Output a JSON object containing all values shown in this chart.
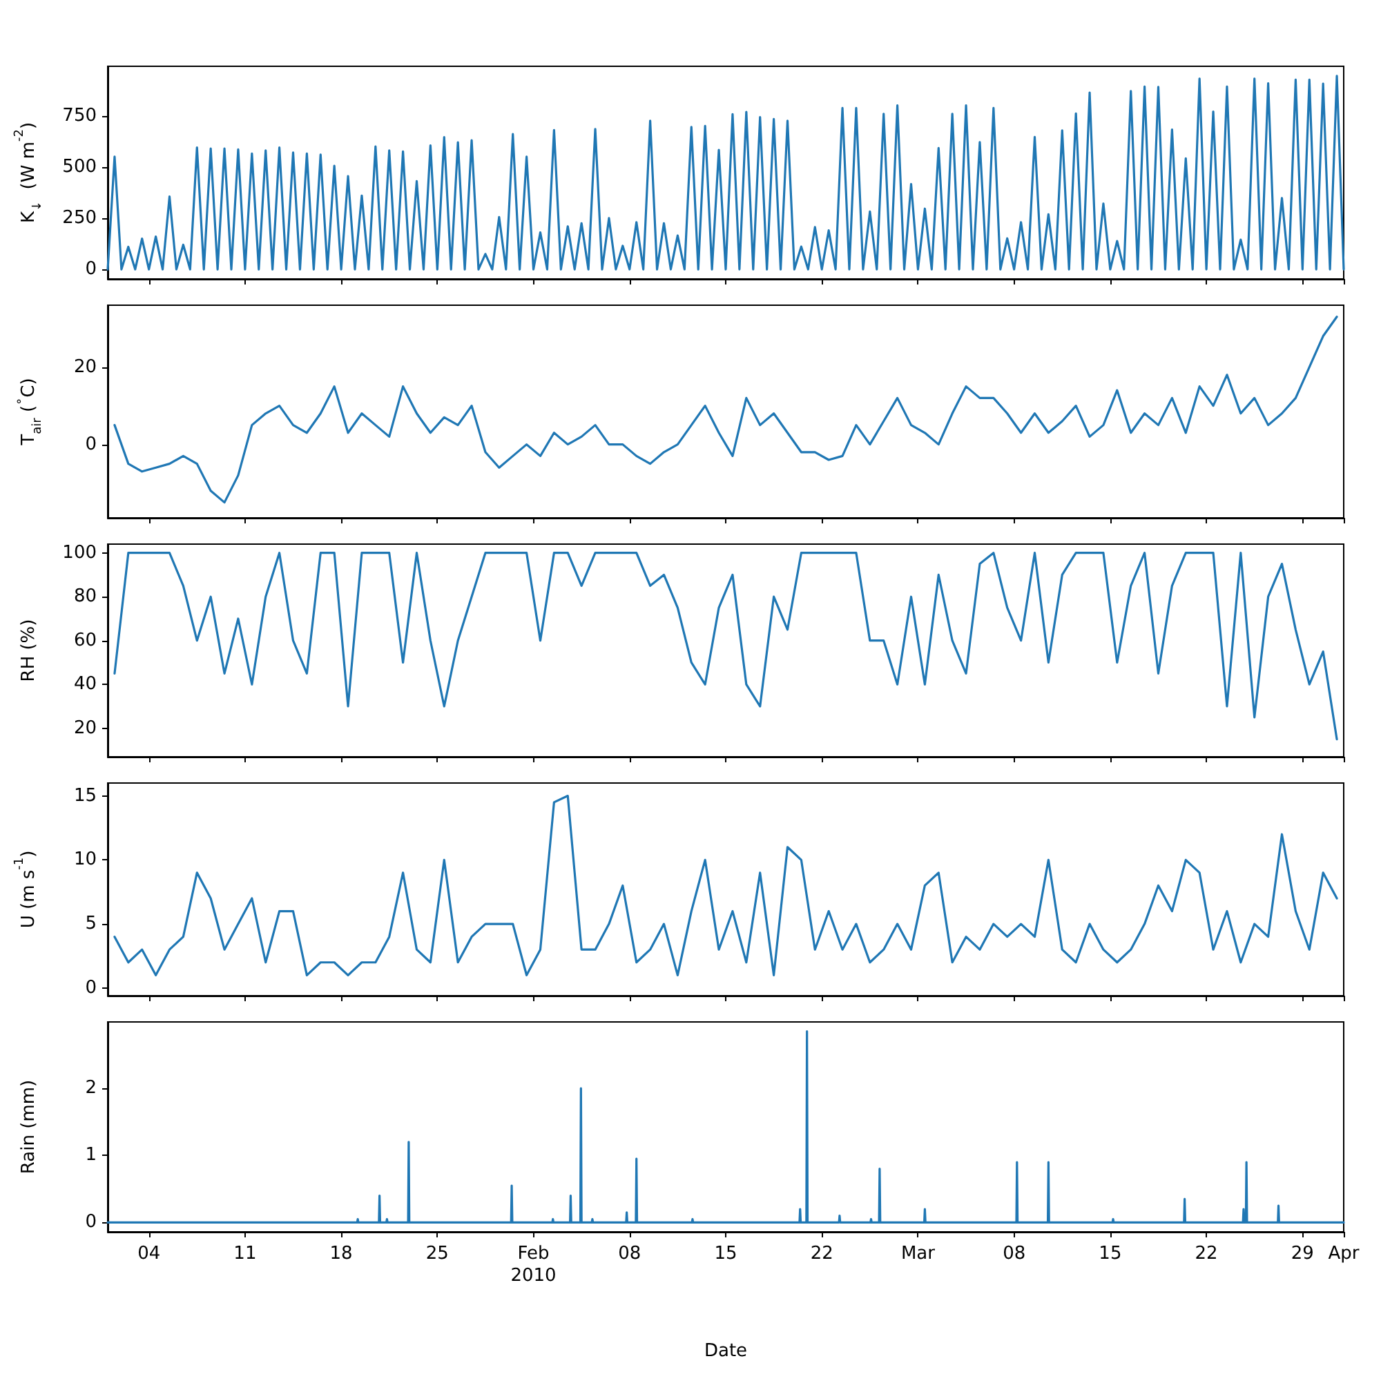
{
  "chart_data": [
    {
      "type": "line",
      "ylabel": "K$_{↓}$  (W m$^{-2}$)",
      "color": "#1f77b4",
      "marker": "none",
      "tick_labels": "y",
      "xlim": [
        "2010-01-01",
        "2010-04-01"
      ],
      "xticks": [
        {
          "value": "2010-01-04",
          "label": null
        },
        {
          "value": "2010-01-11",
          "label": null
        },
        {
          "value": "2010-01-18",
          "label": null
        },
        {
          "value": "2010-01-25",
          "label": null
        },
        {
          "value": "2010-02-01",
          "label": null
        },
        {
          "value": "2010-02-08",
          "label": null
        },
        {
          "value": "2010-02-15",
          "label": null
        },
        {
          "value": "2010-02-22",
          "label": null
        },
        {
          "value": "2010-03-01",
          "label": null
        },
        {
          "value": "2010-03-08",
          "label": null
        },
        {
          "value": "2010-03-15",
          "label": null
        },
        {
          "value": "2010-03-22",
          "label": null
        },
        {
          "value": "2010-03-29",
          "label": null
        },
        {
          "value": "2010-04-01",
          "label": null
        }
      ],
      "ylim": [
        -47,
        991
      ],
      "yticks": [
        0,
        250,
        500,
        750
      ],
      "x": [
        "2010-01-01",
        "2010-01-01T12:00",
        "2010-01-02",
        "2010-01-02T12:00",
        "2010-01-03",
        "2010-01-03T12:00",
        "2010-01-04",
        "2010-01-04T12:00",
        "2010-01-05",
        "2010-01-05T12:00",
        "2010-01-06",
        "2010-01-06T12:00",
        "2010-01-07",
        "2010-01-07T12:00",
        "2010-01-08",
        "2010-01-08T12:00",
        "2010-01-09",
        "2010-01-09T12:00",
        "2010-01-10",
        "2010-01-10T12:00",
        "2010-01-11",
        "2010-01-11T12:00",
        "2010-01-12",
        "2010-01-12T12:00",
        "2010-01-13",
        "2010-01-13T12:00",
        "2010-01-14",
        "2010-01-14T12:00",
        "2010-01-15",
        "2010-01-15T12:00",
        "2010-01-16",
        "2010-01-16T12:00",
        "2010-01-17",
        "2010-01-17T12:00",
        "2010-01-18",
        "2010-01-18T12:00",
        "2010-01-19",
        "2010-01-19T12:00",
        "2010-01-20",
        "2010-01-20T12:00",
        "2010-01-21",
        "2010-01-21T12:00",
        "2010-01-22",
        "2010-01-22T12:00",
        "2010-01-23",
        "2010-01-23T12:00",
        "2010-01-24",
        "2010-01-24T12:00",
        "2010-01-25",
        "2010-01-25T12:00",
        "2010-01-26",
        "2010-01-26T12:00",
        "2010-01-27",
        "2010-01-27T12:00",
        "2010-01-28",
        "2010-01-28T12:00",
        "2010-01-29",
        "2010-01-29T12:00",
        "2010-01-30",
        "2010-01-30T12:00",
        "2010-01-31",
        "2010-01-31T12:00",
        "2010-02-01",
        "2010-02-01T12:00",
        "2010-02-02",
        "2010-02-02T12:00",
        "2010-02-03",
        "2010-02-03T12:00",
        "2010-02-04",
        "2010-02-04T12:00",
        "2010-02-05",
        "2010-02-05T12:00",
        "2010-02-06",
        "2010-02-06T12:00",
        "2010-02-07",
        "2010-02-07T12:00",
        "2010-02-08",
        "2010-02-08T12:00",
        "2010-02-09",
        "2010-02-09T12:00",
        "2010-02-10",
        "2010-02-10T12:00",
        "2010-02-11",
        "2010-02-11T12:00",
        "2010-02-12",
        "2010-02-12T12:00",
        "2010-02-13",
        "2010-02-13T12:00",
        "2010-02-14",
        "2010-02-14T12:00",
        "2010-02-15",
        "2010-02-15T12:00",
        "2010-02-16",
        "2010-02-16T12:00",
        "2010-02-17",
        "2010-02-17T12:00",
        "2010-02-18",
        "2010-02-18T12:00",
        "2010-02-19",
        "2010-02-19T12:00",
        "2010-02-20",
        "2010-02-20T12:00",
        "2010-02-21",
        "2010-02-21T12:00",
        "2010-02-22",
        "2010-02-22T12:00",
        "2010-02-23",
        "2010-02-23T12:00",
        "2010-02-24",
        "2010-02-24T12:00",
        "2010-02-25",
        "2010-02-25T12:00",
        "2010-02-26",
        "2010-02-26T12:00",
        "2010-02-27",
        "2010-02-27T12:00",
        "2010-02-28",
        "2010-02-28T12:00",
        "2010-03-01",
        "2010-03-01T12:00",
        "2010-03-02",
        "2010-03-02T12:00",
        "2010-03-03",
        "2010-03-03T12:00",
        "2010-03-04",
        "2010-03-04T12:00",
        "2010-03-05",
        "2010-03-05T12:00",
        "2010-03-06",
        "2010-03-06T12:00",
        "2010-03-07",
        "2010-03-07T12:00",
        "2010-03-08",
        "2010-03-08T12:00",
        "2010-03-09",
        "2010-03-09T12:00",
        "2010-03-10",
        "2010-03-10T12:00",
        "2010-03-11",
        "2010-03-11T12:00",
        "2010-03-12",
        "2010-03-12T12:00",
        "2010-03-13",
        "2010-03-13T12:00",
        "2010-03-14",
        "2010-03-14T12:00",
        "2010-03-15",
        "2010-03-15T12:00",
        "2010-03-16",
        "2010-03-16T12:00",
        "2010-03-17",
        "2010-03-17T12:00",
        "2010-03-18",
        "2010-03-18T12:00",
        "2010-03-19",
        "2010-03-19T12:00",
        "2010-03-20",
        "2010-03-20T12:00",
        "2010-03-21",
        "2010-03-21T12:00",
        "2010-03-22",
        "2010-03-22T12:00",
        "2010-03-23",
        "2010-03-23T12:00",
        "2010-03-24",
        "2010-03-24T12:00",
        "2010-03-25",
        "2010-03-25T12:00",
        "2010-03-26",
        "2010-03-26T12:00",
        "2010-03-27",
        "2010-03-27T12:00",
        "2010-03-28",
        "2010-03-28T12:00",
        "2010-03-29",
        "2010-03-29T12:00",
        "2010-03-30",
        "2010-03-30T12:00",
        "2010-03-31",
        "2010-03-31T12:00",
        "2010-04-01"
      ],
      "values": [
        0,
        550,
        0,
        110,
        0,
        150,
        0,
        160,
        0,
        355,
        0,
        120,
        0,
        595,
        0,
        590,
        0,
        590,
        0,
        585,
        0,
        565,
        0,
        580,
        0,
        595,
        0,
        570,
        0,
        565,
        0,
        560,
        0,
        505,
        0,
        455,
        0,
        360,
        0,
        600,
        0,
        580,
        0,
        575,
        0,
        430,
        0,
        605,
        0,
        645,
        0,
        620,
        0,
        630,
        0,
        75,
        0,
        255,
        0,
        660,
        0,
        550,
        0,
        180,
        0,
        680,
        0,
        210,
        0,
        225,
        0,
        685,
        0,
        250,
        0,
        115,
        0,
        230,
        0,
        725,
        0,
        225,
        0,
        165,
        0,
        695,
        0,
        700,
        0,
        583,
        0,
        757,
        0,
        768,
        0,
        743,
        0,
        734,
        0,
        725,
        0,
        111,
        0,
        206,
        0,
        190,
        0,
        788,
        0,
        788,
        0,
        282,
        0,
        759,
        0,
        800,
        0,
        416,
        0,
        296,
        0,
        592,
        0,
        759,
        0,
        800,
        0,
        621,
        0,
        788,
        0,
        151,
        0,
        230,
        0,
        646,
        0,
        269,
        0,
        678,
        0,
        761,
        0,
        863,
        0,
        321,
        0,
        138,
        0,
        870,
        0,
        892,
        0,
        890,
        0,
        682,
        0,
        542,
        0,
        931,
        0,
        770,
        0,
        892,
        0,
        145,
        0,
        931,
        0,
        908,
        0,
        348,
        0,
        926,
        0,
        926,
        0,
        906,
        0,
        944,
        0
      ]
    },
    {
      "type": "line",
      "ylabel": "T$_{air}$ ($^{∘}$C)",
      "color": "#1f77b4",
      "marker": "none",
      "tick_labels": "y",
      "xlim": [
        "2010-01-01",
        "2010-04-01"
      ],
      "xticks": [
        {
          "value": "2010-01-04",
          "label": null
        },
        {
          "value": "2010-01-11",
          "label": null
        },
        {
          "value": "2010-01-18",
          "label": null
        },
        {
          "value": "2010-01-25",
          "label": null
        },
        {
          "value": "2010-02-01",
          "label": null
        },
        {
          "value": "2010-02-08",
          "label": null
        },
        {
          "value": "2010-02-15",
          "label": null
        },
        {
          "value": "2010-02-22",
          "label": null
        },
        {
          "value": "2010-03-01",
          "label": null
        },
        {
          "value": "2010-03-08",
          "label": null
        },
        {
          "value": "2010-03-15",
          "label": null
        },
        {
          "value": "2010-03-22",
          "label": null
        },
        {
          "value": "2010-03-29",
          "label": null
        },
        {
          "value": "2010-04-01",
          "label": null
        }
      ],
      "ylim": [
        -19,
        36
      ],
      "yticks": [
        0,
        20
      ],
      "x": [
        "2010-01-01T12:00",
        "2010-01-02T12:00",
        "2010-01-03T12:00",
        "2010-01-04T12:00",
        "2010-01-05T12:00",
        "2010-01-06T12:00",
        "2010-01-07T12:00",
        "2010-01-08T12:00",
        "2010-01-09T12:00",
        "2010-01-10T12:00",
        "2010-01-11T12:00",
        "2010-01-12T12:00",
        "2010-01-13T12:00",
        "2010-01-14T12:00",
        "2010-01-15T12:00",
        "2010-01-16T12:00",
        "2010-01-17T12:00",
        "2010-01-18T12:00",
        "2010-01-19T12:00",
        "2010-01-20T12:00",
        "2010-01-21T12:00",
        "2010-01-22T12:00",
        "2010-01-23T12:00",
        "2010-01-24T12:00",
        "2010-01-25T12:00",
        "2010-01-26T12:00",
        "2010-01-27T12:00",
        "2010-01-28T12:00",
        "2010-01-29T12:00",
        "2010-01-30T12:00",
        "2010-01-31T12:00",
        "2010-02-01T12:00",
        "2010-02-02T12:00",
        "2010-02-03T12:00",
        "2010-02-04T12:00",
        "2010-02-05T12:00",
        "2010-02-06T12:00",
        "2010-02-07T12:00",
        "2010-02-08T12:00",
        "2010-02-09T12:00",
        "2010-02-10T12:00",
        "2010-02-11T12:00",
        "2010-02-12T12:00",
        "2010-02-13T12:00",
        "2010-02-14T12:00",
        "2010-02-15T12:00",
        "2010-02-16T12:00",
        "2010-02-17T12:00",
        "2010-02-18T12:00",
        "2010-02-19T12:00",
        "2010-02-20T12:00",
        "2010-02-21T12:00",
        "2010-02-22T12:00",
        "2010-02-23T12:00",
        "2010-02-24T12:00",
        "2010-02-25T12:00",
        "2010-02-26T12:00",
        "2010-02-27T12:00",
        "2010-02-28T12:00",
        "2010-03-01T12:00",
        "2010-03-02T12:00",
        "2010-03-03T12:00",
        "2010-03-04T12:00",
        "2010-03-05T12:00",
        "2010-03-06T12:00",
        "2010-03-07T12:00",
        "2010-03-08T12:00",
        "2010-03-09T12:00",
        "2010-03-10T12:00",
        "2010-03-11T12:00",
        "2010-03-12T12:00",
        "2010-03-13T12:00",
        "2010-03-14T12:00",
        "2010-03-15T12:00",
        "2010-03-16T12:00",
        "2010-03-17T12:00",
        "2010-03-18T12:00",
        "2010-03-19T12:00",
        "2010-03-20T12:00",
        "2010-03-21T12:00",
        "2010-03-22T12:00",
        "2010-03-23T12:00",
        "2010-03-24T12:00",
        "2010-03-25T12:00",
        "2010-03-26T12:00",
        "2010-03-27T12:00",
        "2010-03-28T12:00",
        "2010-03-29T12:00",
        "2010-03-30T12:00",
        "2010-03-31T12:00"
      ],
      "values": [
        5,
        -5,
        -7,
        -6,
        -5,
        -3,
        -5,
        -12,
        -15,
        -8,
        5,
        8,
        10,
        5,
        3,
        8,
        15,
        3,
        8,
        5,
        2,
        15,
        8,
        3,
        7,
        5,
        10,
        -2,
        -6,
        -3,
        0,
        -3,
        3,
        0,
        2,
        5,
        0,
        0,
        -3,
        -5,
        -2,
        0,
        5,
        10,
        3,
        -3,
        12,
        5,
        8,
        3,
        -2,
        -2,
        -4,
        -3,
        5,
        0,
        6,
        12,
        5,
        3,
        0,
        8,
        15,
        12,
        12,
        8,
        3,
        8,
        3,
        6,
        10,
        2,
        5,
        14,
        3,
        8,
        5,
        12,
        3,
        15,
        10,
        18,
        8,
        12,
        5,
        8,
        12,
        20,
        28,
        33
      ]
    },
    {
      "type": "line",
      "ylabel": "RH (%)",
      "color": "#1f77b4",
      "marker": "none",
      "tick_labels": "y",
      "xlim": [
        "2010-01-01",
        "2010-04-01"
      ],
      "xticks": [
        {
          "value": "2010-01-04",
          "label": null
        },
        {
          "value": "2010-01-11",
          "label": null
        },
        {
          "value": "2010-01-18",
          "label": null
        },
        {
          "value": "2010-01-25",
          "label": null
        },
        {
          "value": "2010-02-01",
          "label": null
        },
        {
          "value": "2010-02-08",
          "label": null
        },
        {
          "value": "2010-02-15",
          "label": null
        },
        {
          "value": "2010-02-22",
          "label": null
        },
        {
          "value": "2010-03-01",
          "label": null
        },
        {
          "value": "2010-03-08",
          "label": null
        },
        {
          "value": "2010-03-15",
          "label": null
        },
        {
          "value": "2010-03-22",
          "label": null
        },
        {
          "value": "2010-03-29",
          "label": null
        },
        {
          "value": "2010-04-01",
          "label": null
        }
      ],
      "ylim": [
        7,
        104
      ],
      "yticks": [
        20,
        40,
        60,
        80,
        100
      ],
      "x": [
        "2010-01-01T12:00",
        "2010-01-02T12:00",
        "2010-01-03T12:00",
        "2010-01-04T12:00",
        "2010-01-05T12:00",
        "2010-01-06T12:00",
        "2010-01-07T12:00",
        "2010-01-08T12:00",
        "2010-01-09T12:00",
        "2010-01-10T12:00",
        "2010-01-11T12:00",
        "2010-01-12T12:00",
        "2010-01-13T12:00",
        "2010-01-14T12:00",
        "2010-01-15T12:00",
        "2010-01-16T12:00",
        "2010-01-17T12:00",
        "2010-01-18T12:00",
        "2010-01-19T12:00",
        "2010-01-20T12:00",
        "2010-01-21T12:00",
        "2010-01-22T12:00",
        "2010-01-23T12:00",
        "2010-01-24T12:00",
        "2010-01-25T12:00",
        "2010-01-26T12:00",
        "2010-01-27T12:00",
        "2010-01-28T12:00",
        "2010-01-29T12:00",
        "2010-01-30T12:00",
        "2010-01-31T12:00",
        "2010-02-01T12:00",
        "2010-02-02T12:00",
        "2010-02-03T12:00",
        "2010-02-04T12:00",
        "2010-02-05T12:00",
        "2010-02-06T12:00",
        "2010-02-07T12:00",
        "2010-02-08T12:00",
        "2010-02-09T12:00",
        "2010-02-10T12:00",
        "2010-02-11T12:00",
        "2010-02-12T12:00",
        "2010-02-13T12:00",
        "2010-02-14T12:00",
        "2010-02-15T12:00",
        "2010-02-16T12:00",
        "2010-02-17T12:00",
        "2010-02-18T12:00",
        "2010-02-19T12:00",
        "2010-02-20T12:00",
        "2010-02-21T12:00",
        "2010-02-22T12:00",
        "2010-02-23T12:00",
        "2010-02-24T12:00",
        "2010-02-25T12:00",
        "2010-02-26T12:00",
        "2010-02-27T12:00",
        "2010-02-28T12:00",
        "2010-03-01T12:00",
        "2010-03-02T12:00",
        "2010-03-03T12:00",
        "2010-03-04T12:00",
        "2010-03-05T12:00",
        "2010-03-06T12:00",
        "2010-03-07T12:00",
        "2010-03-08T12:00",
        "2010-03-09T12:00",
        "2010-03-10T12:00",
        "2010-03-11T12:00",
        "2010-03-12T12:00",
        "2010-03-13T12:00",
        "2010-03-14T12:00",
        "2010-03-15T12:00",
        "2010-03-16T12:00",
        "2010-03-17T12:00",
        "2010-03-18T12:00",
        "2010-03-19T12:00",
        "2010-03-20T12:00",
        "2010-03-21T12:00",
        "2010-03-22T12:00",
        "2010-03-23T12:00",
        "2010-03-24T12:00",
        "2010-03-25T12:00",
        "2010-03-26T12:00",
        "2010-03-27T12:00",
        "2010-03-28T12:00",
        "2010-03-29T12:00",
        "2010-03-30T12:00",
        "2010-03-31T12:00"
      ],
      "values": [
        45,
        100,
        100,
        100,
        100,
        85,
        60,
        80,
        45,
        70,
        40,
        80,
        100,
        60,
        45,
        100,
        100,
        30,
        100,
        100,
        100,
        50,
        100,
        60,
        30,
        60,
        80,
        100,
        100,
        100,
        100,
        60,
        100,
        100,
        85,
        100,
        100,
        100,
        100,
        85,
        90,
        75,
        50,
        40,
        75,
        90,
        40,
        30,
        80,
        65,
        100,
        100,
        100,
        100,
        100,
        60,
        60,
        40,
        80,
        40,
        90,
        60,
        45,
        95,
        100,
        75,
        60,
        100,
        50,
        90,
        100,
        100,
        100,
        50,
        85,
        100,
        45,
        85,
        100,
        100,
        100,
        30,
        100,
        25,
        80,
        95,
        65,
        40,
        55,
        15
      ]
    },
    {
      "type": "line",
      "ylabel": "U (m s$^{-1}$)",
      "color": "#1f77b4",
      "marker": "none",
      "tick_labels": "y",
      "xlim": [
        "2010-01-01",
        "2010-04-01"
      ],
      "xticks": [
        {
          "value": "2010-01-04",
          "label": null
        },
        {
          "value": "2010-01-11",
          "label": null
        },
        {
          "value": "2010-01-18",
          "label": null
        },
        {
          "value": "2010-01-25",
          "label": null
        },
        {
          "value": "2010-02-01",
          "label": null
        },
        {
          "value": "2010-02-08",
          "label": null
        },
        {
          "value": "2010-02-15",
          "label": null
        },
        {
          "value": "2010-02-22",
          "label": null
        },
        {
          "value": "2010-03-01",
          "label": null
        },
        {
          "value": "2010-03-08",
          "label": null
        },
        {
          "value": "2010-03-15",
          "label": null
        },
        {
          "value": "2010-03-22",
          "label": null
        },
        {
          "value": "2010-03-29",
          "label": null
        },
        {
          "value": "2010-04-01",
          "label": null
        }
      ],
      "ylim": [
        -0.6,
        16
      ],
      "yticks": [
        0,
        5,
        10,
        15
      ],
      "x": [
        "2010-01-01T12:00",
        "2010-01-02T12:00",
        "2010-01-03T12:00",
        "2010-01-04T12:00",
        "2010-01-05T12:00",
        "2010-01-06T12:00",
        "2010-01-07T12:00",
        "2010-01-08T12:00",
        "2010-01-09T12:00",
        "2010-01-10T12:00",
        "2010-01-11T12:00",
        "2010-01-12T12:00",
        "2010-01-13T12:00",
        "2010-01-14T12:00",
        "2010-01-15T12:00",
        "2010-01-16T12:00",
        "2010-01-17T12:00",
        "2010-01-18T12:00",
        "2010-01-19T12:00",
        "2010-01-20T12:00",
        "2010-01-21T12:00",
        "2010-01-22T12:00",
        "2010-01-23T12:00",
        "2010-01-24T12:00",
        "2010-01-25T12:00",
        "2010-01-26T12:00",
        "2010-01-27T12:00",
        "2010-01-28T12:00",
        "2010-01-29T12:00",
        "2010-01-30T12:00",
        "2010-01-31T12:00",
        "2010-02-01T12:00",
        "2010-02-02T12:00",
        "2010-02-03T12:00",
        "2010-02-04T12:00",
        "2010-02-05T12:00",
        "2010-02-06T12:00",
        "2010-02-07T12:00",
        "2010-02-08T12:00",
        "2010-02-09T12:00",
        "2010-02-10T12:00",
        "2010-02-11T12:00",
        "2010-02-12T12:00",
        "2010-02-13T12:00",
        "2010-02-14T12:00",
        "2010-02-15T12:00",
        "2010-02-16T12:00",
        "2010-02-17T12:00",
        "2010-02-18T12:00",
        "2010-02-19T12:00",
        "2010-02-20T12:00",
        "2010-02-21T12:00",
        "2010-02-22T12:00",
        "2010-02-23T12:00",
        "2010-02-24T12:00",
        "2010-02-25T12:00",
        "2010-02-26T12:00",
        "2010-02-27T12:00",
        "2010-02-28T12:00",
        "2010-03-01T12:00",
        "2010-03-02T12:00",
        "2010-03-03T12:00",
        "2010-03-04T12:00",
        "2010-03-05T12:00",
        "2010-03-06T12:00",
        "2010-03-07T12:00",
        "2010-03-08T12:00",
        "2010-03-09T12:00",
        "2010-03-10T12:00",
        "2010-03-11T12:00",
        "2010-03-12T12:00",
        "2010-03-13T12:00",
        "2010-03-14T12:00",
        "2010-03-15T12:00",
        "2010-03-16T12:00",
        "2010-03-17T12:00",
        "2010-03-18T12:00",
        "2010-03-19T12:00",
        "2010-03-20T12:00",
        "2010-03-21T12:00",
        "2010-03-22T12:00",
        "2010-03-23T12:00",
        "2010-03-24T12:00",
        "2010-03-25T12:00",
        "2010-03-26T12:00",
        "2010-03-27T12:00",
        "2010-03-28T12:00",
        "2010-03-29T12:00",
        "2010-03-30T12:00",
        "2010-03-31T12:00"
      ],
      "values": [
        4,
        2,
        3,
        1,
        3,
        4,
        9,
        7,
        3,
        5,
        7,
        2,
        6,
        6,
        1,
        2,
        2,
        1,
        2,
        2,
        4,
        9,
        3,
        2,
        10,
        2,
        4,
        5,
        5,
        5,
        1,
        3,
        14.5,
        15,
        3,
        3,
        5,
        8,
        2,
        3,
        5,
        1,
        6,
        10,
        3,
        6,
        2,
        9,
        1,
        11,
        10,
        3,
        6,
        3,
        5,
        2,
        3,
        5,
        3,
        8,
        9,
        2,
        4,
        3,
        5,
        4,
        5,
        4,
        10,
        3,
        2,
        5,
        3,
        2,
        3,
        5,
        8,
        6,
        10,
        9,
        3,
        6,
        2,
        5,
        4,
        12,
        6,
        3,
        9,
        7
      ]
    },
    {
      "type": "line",
      "ylabel": "Rain (mm)",
      "xlabel": "Date",
      "color": "#1f77b4",
      "marker": "none",
      "xlim": [
        "2010-01-01",
        "2010-04-01"
      ],
      "xticks": [
        {
          "value": "2010-01-04",
          "label": "04"
        },
        {
          "value": "2010-01-11",
          "label": "11"
        },
        {
          "value": "2010-01-18",
          "label": "18"
        },
        {
          "value": "2010-01-25",
          "label": "25"
        },
        {
          "value": "2010-02-01",
          "label": "Feb\n2010"
        },
        {
          "value": "2010-02-08",
          "label": "08"
        },
        {
          "value": "2010-02-15",
          "label": "15"
        },
        {
          "value": "2010-02-22",
          "label": "22"
        },
        {
          "value": "2010-03-01",
          "label": "Mar"
        },
        {
          "value": "2010-03-08",
          "label": "08"
        },
        {
          "value": "2010-03-15",
          "label": "15"
        },
        {
          "value": "2010-03-22",
          "label": "22"
        },
        {
          "value": "2010-03-29",
          "label": "29"
        },
        {
          "value": "2010-04-01",
          "label": "Apr"
        }
      ],
      "ylim": [
        -0.14,
        2.99
      ],
      "yticks": [
        0,
        1,
        2
      ],
      "x": [
        "2010-01-01",
        "2010-01-19T04:00",
        "2010-01-19T05:00",
        "2010-01-19T06:00",
        "2010-01-20T18:00",
        "2010-01-20T19:00",
        "2010-01-20T20:00",
        "2010-01-21T07:00",
        "2010-01-21T08:00",
        "2010-01-21T09:00",
        "2010-01-22T21:00",
        "2010-01-22T22:00",
        "2010-01-22T23:00",
        "2010-01-30T09:00",
        "2010-01-30T10:00",
        "2010-01-30T11:00",
        "2010-02-02T09:00",
        "2010-02-02T10:00",
        "2010-02-02T11:00",
        "2010-02-03T16:00",
        "2010-02-03T17:00",
        "2010-02-03T18:00",
        "2010-02-04T10:00",
        "2010-02-04T11:00",
        "2010-02-04T12:00",
        "2010-02-05T06:00",
        "2010-02-05T07:00",
        "2010-02-05T08:00",
        "2010-02-07T18:00",
        "2010-02-07T19:00",
        "2010-02-07T20:00",
        "2010-02-08T11:00",
        "2010-02-08T12:00",
        "2010-02-08T13:00",
        "2010-02-12T13:00",
        "2010-02-12T14:00",
        "2010-02-12T15:00",
        "2010-02-20T09:00",
        "2010-02-20T10:00",
        "2010-02-20T11:00",
        "2010-02-20T21:00",
        "2010-02-20T22:00",
        "2010-02-20T23:00",
        "2010-02-23T06:00",
        "2010-02-23T07:00",
        "2010-02-23T08:00",
        "2010-02-25T13:00",
        "2010-02-25T14:00",
        "2010-02-25T15:00",
        "2010-02-26T04:00",
        "2010-02-26T05:00",
        "2010-02-26T06:00",
        "2010-03-01T11:00",
        "2010-03-01T12:00",
        "2010-03-01T13:00",
        "2010-03-08T04:00",
        "2010-03-08T05:00",
        "2010-03-08T06:00",
        "2010-03-10T11:00",
        "2010-03-10T12:00",
        "2010-03-10T13:00",
        "2010-03-15T04:00",
        "2010-03-15T05:00",
        "2010-03-15T06:00",
        "2010-03-20T09:00",
        "2010-03-20T10:00",
        "2010-03-20T11:00",
        "2010-03-24T16:00",
        "2010-03-24T17:00",
        "2010-03-24T18:00",
        "2010-03-24T21:00",
        "2010-03-24T22:00",
        "2010-03-24T23:00",
        "2010-03-27T05:00",
        "2010-03-27T06:00",
        "2010-03-27T07:00",
        "2010-04-01"
      ],
      "values": [
        0,
        0,
        0.05,
        0,
        0,
        0.4,
        0,
        0,
        0.05,
        0,
        0,
        1.2,
        0,
        0,
        0.55,
        0,
        0,
        0.05,
        0,
        0,
        0.4,
        0,
        0,
        2.0,
        0,
        0,
        0.05,
        0,
        0,
        0.15,
        0,
        0,
        0.95,
        0,
        0,
        0.05,
        0,
        0,
        0.2,
        0,
        0,
        2.85,
        0,
        0,
        0.1,
        0,
        0,
        0.05,
        0,
        0,
        0.8,
        0,
        0,
        0.2,
        0,
        0,
        0.9,
        0,
        0,
        0.9,
        0,
        0,
        0.05,
        0,
        0,
        0.35,
        0,
        0,
        0.2,
        0,
        0,
        0.9,
        0,
        0,
        0.25,
        0,
        0
      ]
    }
  ]
}
